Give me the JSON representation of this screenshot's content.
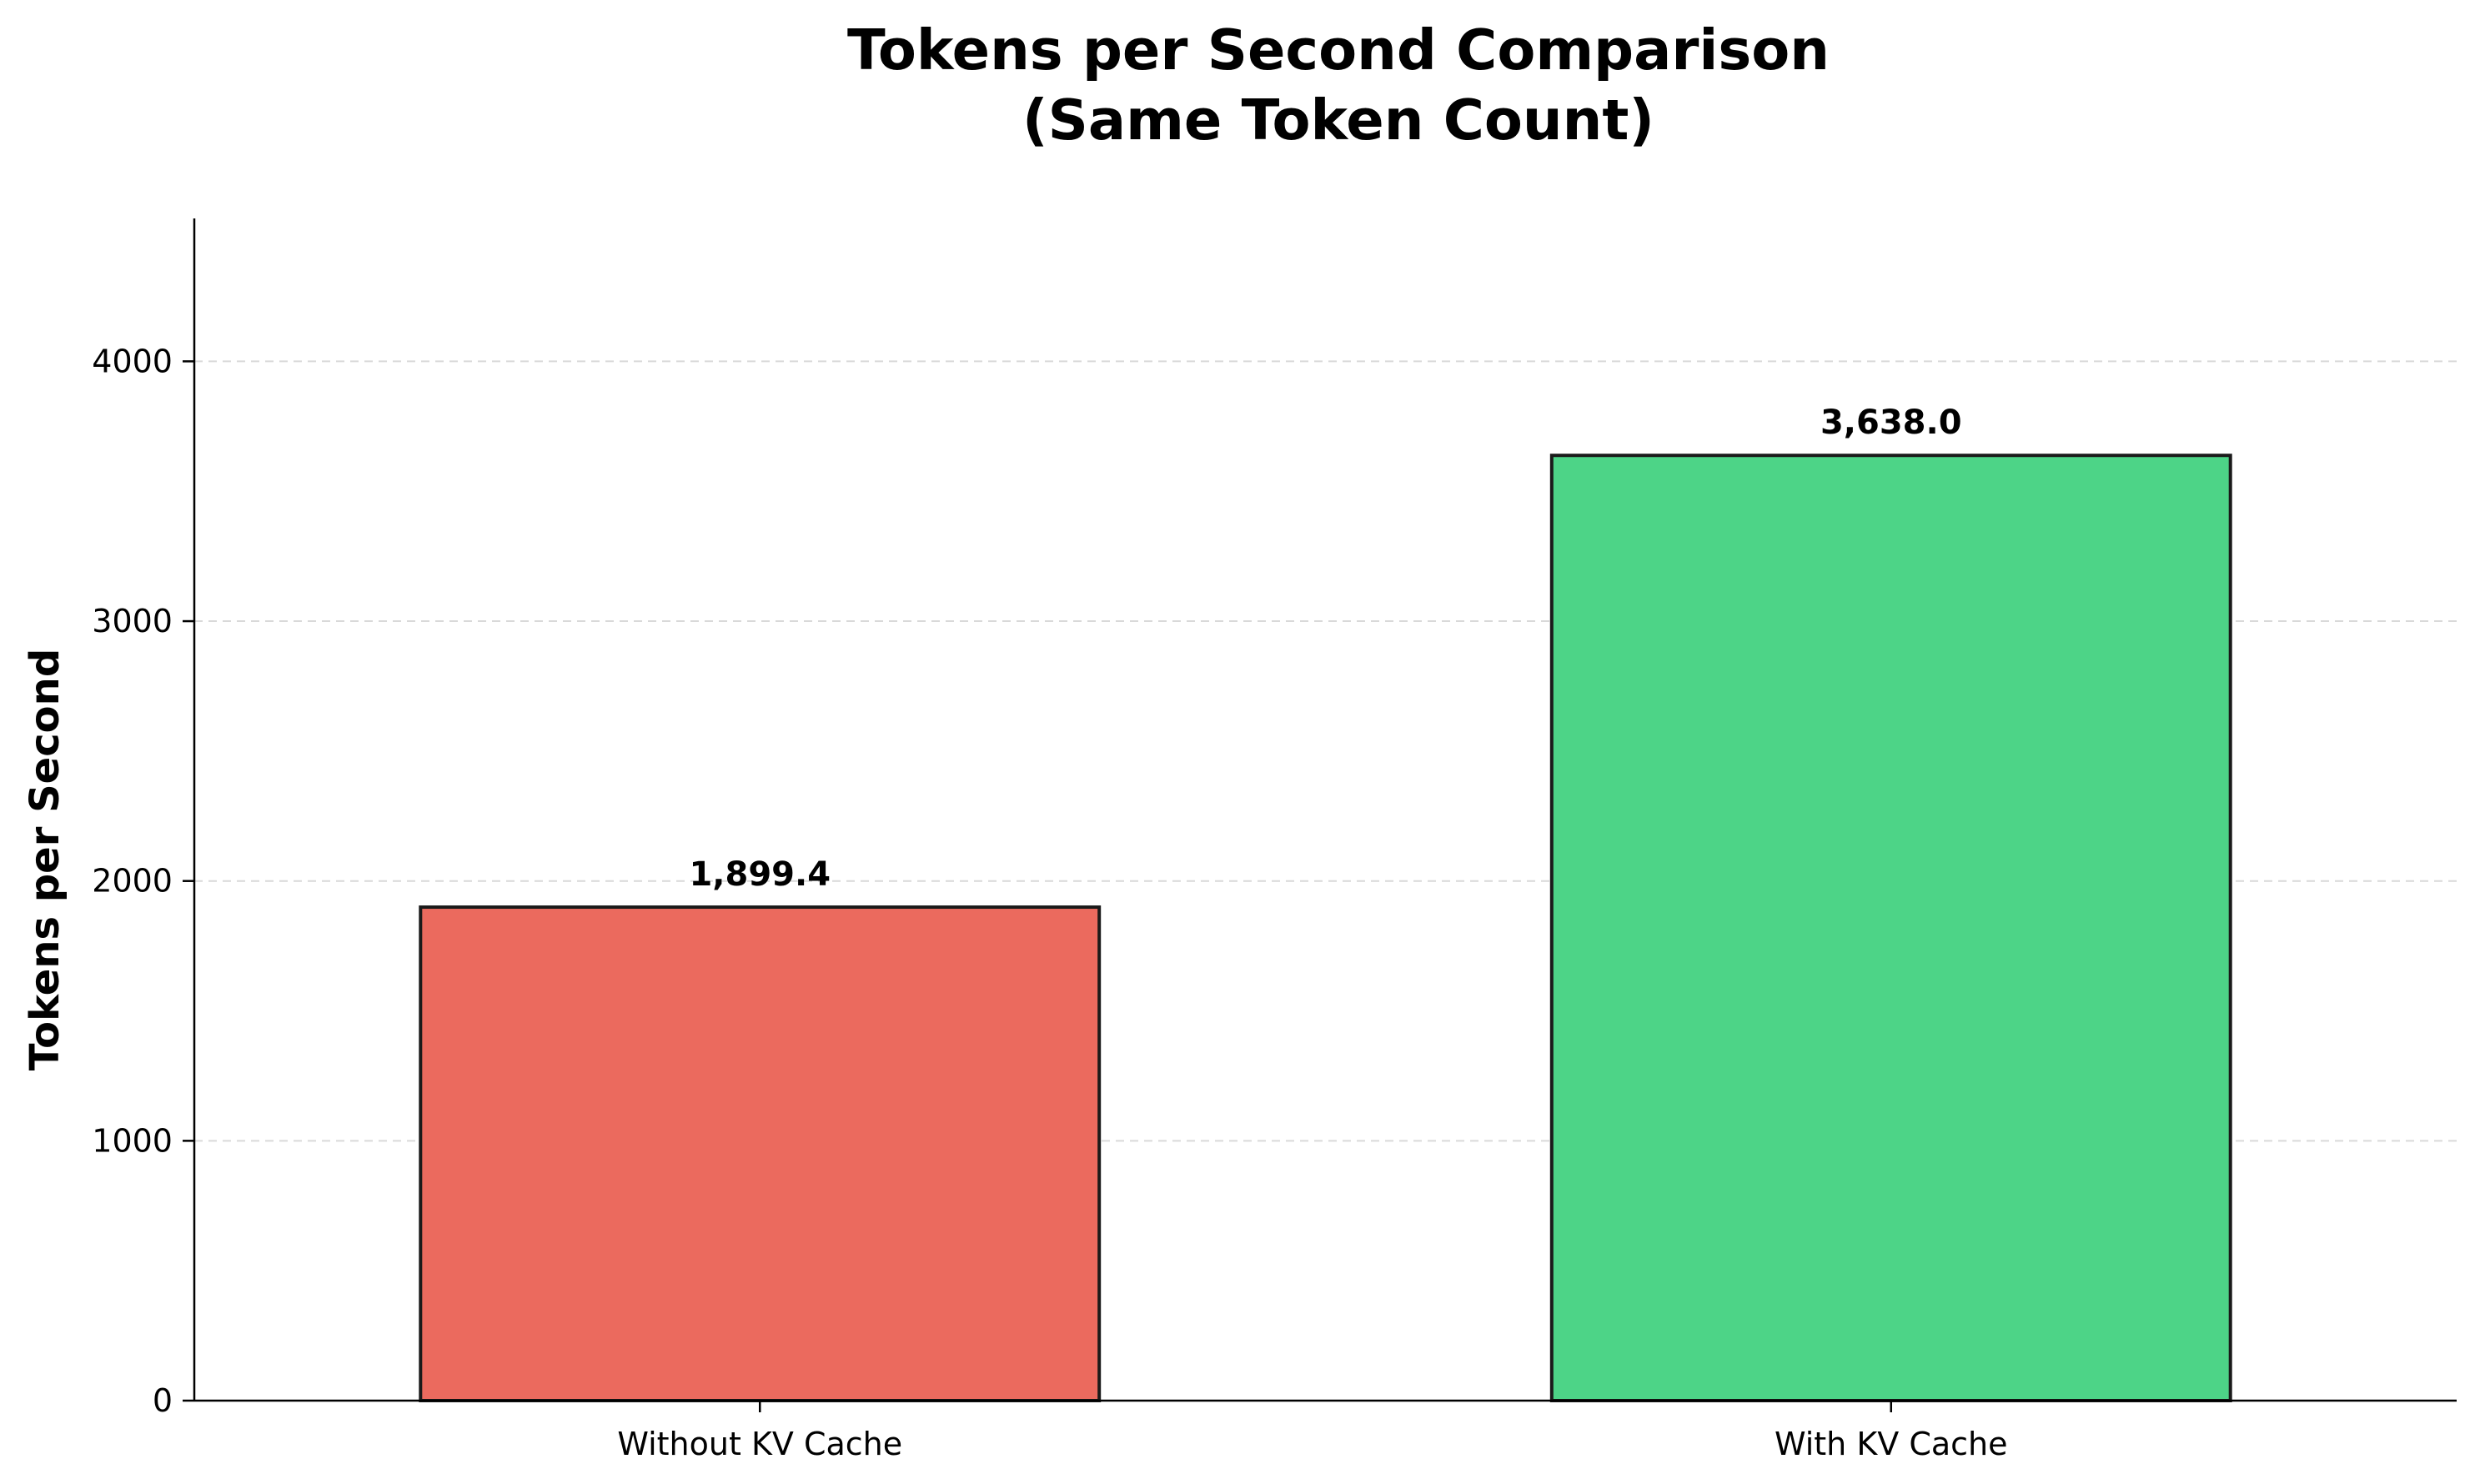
{
  "chart_data": {
    "type": "bar",
    "title": "Tokens per Second Comparison",
    "subtitle": "(Same Token Count)",
    "xlabel": "",
    "ylabel": "Tokens per Second",
    "categories": [
      "Without KV Cache",
      "With KV Cache"
    ],
    "values": [
      1899.4,
      3638.0
    ],
    "value_labels": [
      "1,899.4",
      "3,638.0"
    ],
    "colors": [
      "#EB6A5E",
      "#4DD487"
    ],
    "edge_color": "#1a1a1a",
    "ylim": [
      0,
      4550
    ],
    "yticks": [
      0,
      1000,
      2000,
      3000,
      4000
    ],
    "ytick_labels": [
      "0",
      "1000",
      "2000",
      "3000",
      "4000"
    ],
    "grid": "y-dashed",
    "legend": "none"
  }
}
